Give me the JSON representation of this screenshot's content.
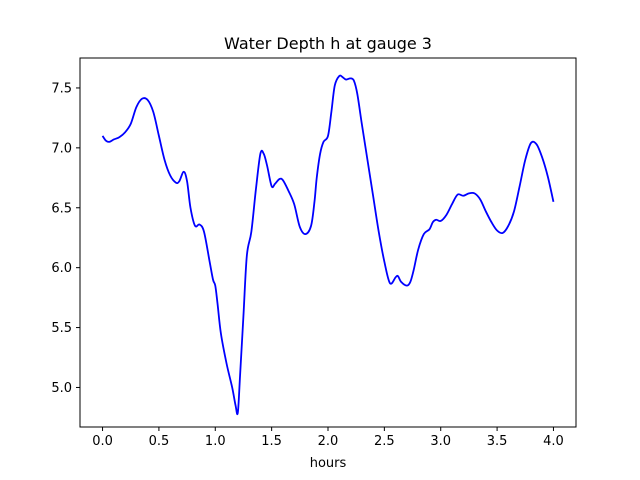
{
  "chart_data": {
    "type": "line",
    "title": "Water Depth h at gauge 3",
    "xlabel": "hours",
    "ylabel": "",
    "xlim": [
      -0.2,
      4.2
    ],
    "ylim": [
      4.67,
      7.75
    ],
    "xticks": [
      0.0,
      0.5,
      1.0,
      1.5,
      2.0,
      2.5,
      3.0,
      3.5,
      4.0
    ],
    "xtick_labels": [
      "0.0",
      "0.5",
      "1.0",
      "1.5",
      "2.0",
      "2.5",
      "3.0",
      "3.5",
      "4.0"
    ],
    "yticks": [
      5.0,
      5.5,
      6.0,
      6.5,
      7.0,
      7.5
    ],
    "ytick_labels": [
      "5.0",
      "5.5",
      "6.0",
      "6.5",
      "7.0",
      "7.5"
    ],
    "grid": false,
    "series": [
      {
        "color": "#0000ff",
        "x": [
          0.0,
          0.03,
          0.06,
          0.1,
          0.15,
          0.2,
          0.25,
          0.3,
          0.35,
          0.4,
          0.45,
          0.5,
          0.55,
          0.6,
          0.65,
          0.68,
          0.72,
          0.75,
          0.78,
          0.82,
          0.86,
          0.9,
          0.95,
          0.98,
          1.0,
          1.02,
          1.05,
          1.1,
          1.15,
          1.18,
          1.2,
          1.22,
          1.25,
          1.28,
          1.32,
          1.36,
          1.4,
          1.43,
          1.46,
          1.5,
          1.53,
          1.57,
          1.6,
          1.65,
          1.7,
          1.75,
          1.8,
          1.85,
          1.88,
          1.9,
          1.93,
          1.96,
          2.0,
          2.03,
          2.06,
          2.1,
          2.13,
          2.16,
          2.2,
          2.23,
          2.26,
          2.3,
          2.35,
          2.4,
          2.45,
          2.5,
          2.55,
          2.6,
          2.62,
          2.65,
          2.7,
          2.73,
          2.76,
          2.8,
          2.85,
          2.9,
          2.93,
          2.96,
          3.0,
          3.05,
          3.1,
          3.15,
          3.2,
          3.25,
          3.3,
          3.35,
          3.4,
          3.45,
          3.5,
          3.55,
          3.6,
          3.65,
          3.7,
          3.75,
          3.8,
          3.85,
          3.9,
          3.95,
          4.0
        ],
        "y": [
          7.1,
          7.06,
          7.05,
          7.07,
          7.09,
          7.13,
          7.2,
          7.34,
          7.41,
          7.4,
          7.3,
          7.1,
          6.9,
          6.77,
          6.71,
          6.72,
          6.8,
          6.72,
          6.5,
          6.35,
          6.36,
          6.3,
          6.05,
          5.9,
          5.85,
          5.7,
          5.45,
          5.2,
          5.0,
          4.85,
          4.79,
          5.1,
          5.6,
          6.1,
          6.3,
          6.65,
          6.95,
          6.95,
          6.85,
          6.68,
          6.7,
          6.74,
          6.73,
          6.64,
          6.53,
          6.34,
          6.28,
          6.35,
          6.55,
          6.75,
          6.95,
          7.05,
          7.1,
          7.3,
          7.52,
          7.6,
          7.59,
          7.57,
          7.58,
          7.56,
          7.45,
          7.2,
          6.9,
          6.6,
          6.3,
          6.05,
          5.87,
          5.92,
          5.93,
          5.88,
          5.85,
          5.88,
          5.98,
          6.15,
          6.28,
          6.32,
          6.38,
          6.4,
          6.39,
          6.44,
          6.53,
          6.61,
          6.6,
          6.62,
          6.62,
          6.57,
          6.47,
          6.38,
          6.31,
          6.29,
          6.35,
          6.47,
          6.68,
          6.9,
          7.04,
          7.03,
          6.92,
          6.76,
          6.55
        ]
      }
    ]
  }
}
